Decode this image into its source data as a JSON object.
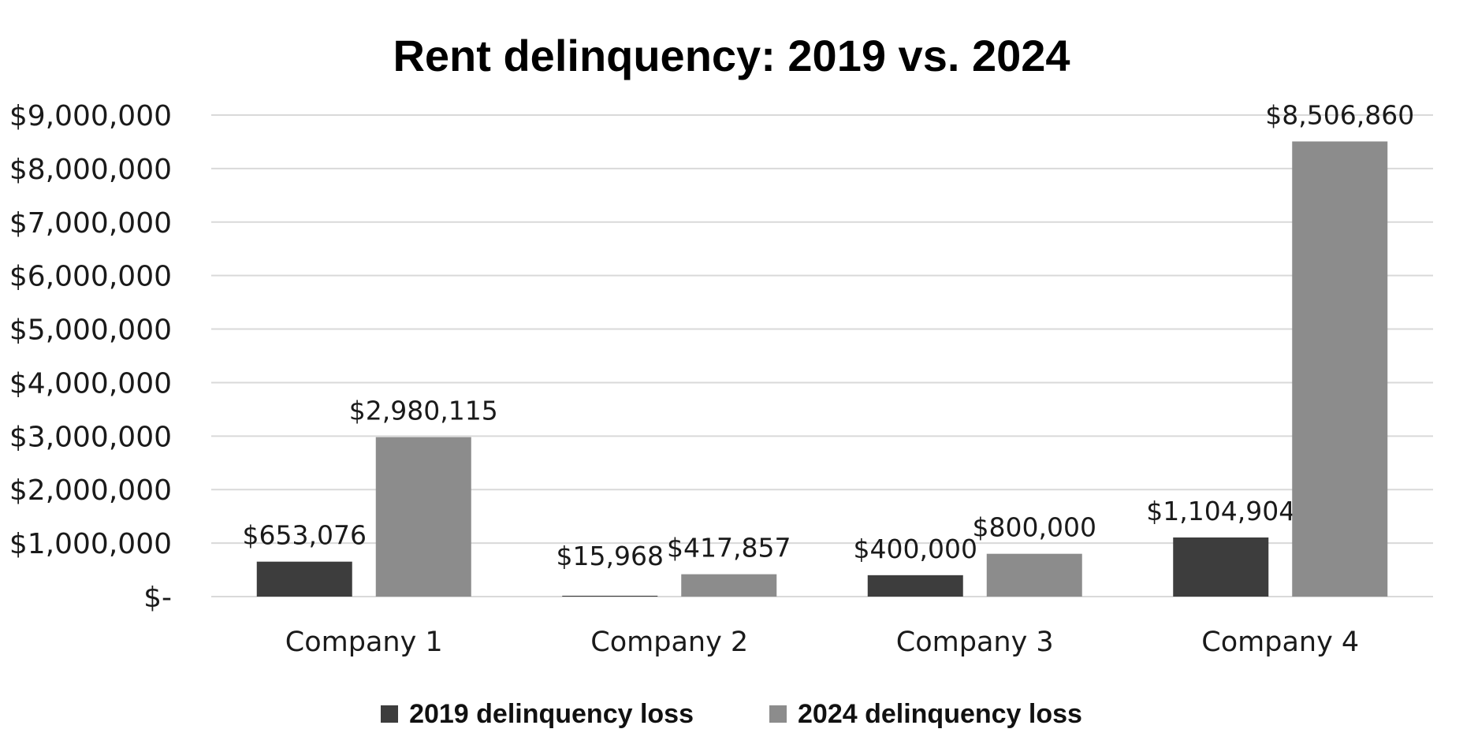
{
  "chart_data": {
    "type": "bar",
    "title": "Rent delinquency: 2019 vs. 2024",
    "xlabel": "",
    "ylabel": "",
    "categories": [
      "Company 1",
      "Company 2",
      "Company 3",
      "Company 4"
    ],
    "series": [
      {
        "name": "2019 delinquency loss",
        "color": "#3d3d3d",
        "values": [
          653076,
          15968,
          400000,
          1104904
        ],
        "labels": [
          "$653,076",
          "$15,968",
          "$400,000",
          "$1,104,904"
        ]
      },
      {
        "name": "2024 delinquency loss",
        "color": "#8c8c8c",
        "values": [
          2980115,
          417857,
          800000,
          8506860
        ],
        "labels": [
          "$2,980,115",
          "$417,857",
          "$800,000",
          "$8,506,860"
        ]
      }
    ],
    "ylim": [
      0,
      9000000
    ],
    "yticks": [
      0,
      1000000,
      2000000,
      3000000,
      4000000,
      5000000,
      6000000,
      7000000,
      8000000,
      9000000
    ],
    "ytick_labels": [
      "$-",
      "$1,000,000",
      "$2,000,000",
      "$3,000,000",
      "$4,000,000",
      "$5,000,000",
      "$6,000,000",
      "$7,000,000",
      "$8,000,000",
      "$9,000,000"
    ],
    "grid": true,
    "gridline_color": "#d9d9d9",
    "legend_position": "bottom-center"
  }
}
